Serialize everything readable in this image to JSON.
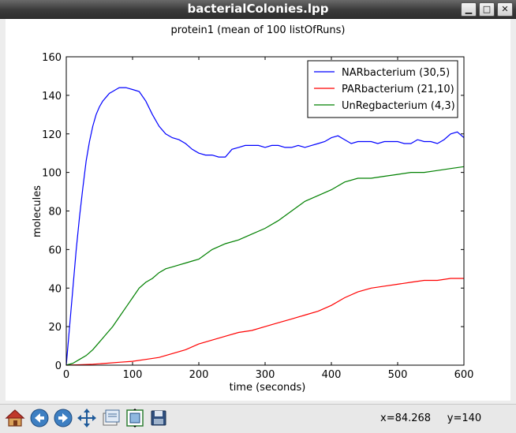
{
  "window": {
    "title": "bacterialColonies.lpp"
  },
  "window_controls": {
    "minimize": "▁",
    "maximize": "□",
    "close": "✕"
  },
  "toolbar": {
    "buttons": [
      {
        "icon": "home-icon"
      },
      {
        "icon": "back-icon"
      },
      {
        "icon": "forward-icon"
      },
      {
        "icon": "pan-icon"
      },
      {
        "icon": "zoom-icon"
      },
      {
        "icon": "subplots-icon"
      },
      {
        "icon": "save-icon"
      }
    ],
    "x_readout": "x=84.268",
    "y_readout": "y=140"
  },
  "chart_data": {
    "type": "line",
    "title": "protein1 (mean of 100 listOfRuns)",
    "xlabel": "time (seconds)",
    "ylabel": "molecules",
    "xlim": [
      0,
      600
    ],
    "ylim": [
      0,
      160
    ],
    "xticks": [
      0,
      100,
      200,
      300,
      400,
      500,
      600
    ],
    "yticks": [
      0,
      20,
      40,
      60,
      80,
      100,
      120,
      140,
      160
    ],
    "legend_position": "top-right",
    "grid": false,
    "series": [
      {
        "name": "NARbacterium (30,5)",
        "color": "#0000ff",
        "x": [
          0,
          5,
          10,
          15,
          20,
          25,
          30,
          35,
          40,
          45,
          50,
          55,
          60,
          65,
          70,
          75,
          80,
          85,
          90,
          95,
          100,
          110,
          120,
          130,
          140,
          150,
          160,
          170,
          180,
          190,
          200,
          210,
          220,
          230,
          240,
          250,
          260,
          270,
          280,
          290,
          300,
          310,
          320,
          330,
          340,
          350,
          360,
          370,
          380,
          390,
          400,
          410,
          420,
          430,
          440,
          450,
          460,
          470,
          480,
          490,
          500,
          510,
          520,
          530,
          540,
          550,
          560,
          570,
          580,
          590,
          600
        ],
        "y": [
          0,
          20,
          40,
          60,
          77,
          92,
          106,
          116,
          124,
          130,
          134,
          137,
          139,
          141,
          142,
          143,
          144,
          144,
          144,
          143.5,
          143,
          142,
          137,
          130,
          124,
          120,
          118,
          117,
          115,
          112,
          110,
          109,
          109,
          108,
          108,
          112,
          113,
          114,
          114,
          114,
          113,
          114,
          114,
          113,
          113,
          114,
          113,
          114,
          115,
          116,
          118,
          119,
          117,
          115,
          116,
          116,
          116,
          115,
          116,
          116,
          116,
          115,
          115,
          117,
          116,
          116,
          115,
          117,
          120,
          121,
          118
        ]
      },
      {
        "name": "PARbacterium (21,10)",
        "color": "#ff0000",
        "x": [
          0,
          20,
          40,
          60,
          80,
          100,
          120,
          140,
          160,
          180,
          200,
          220,
          240,
          260,
          280,
          300,
          320,
          340,
          360,
          380,
          400,
          420,
          440,
          460,
          480,
          500,
          520,
          540,
          560,
          580,
          600
        ],
        "y": [
          0,
          0.2,
          0.5,
          1,
          1.5,
          2,
          3,
          4,
          6,
          8,
          11,
          13,
          15,
          17,
          18,
          20,
          22,
          24,
          26,
          28,
          31,
          35,
          38,
          40,
          41,
          42,
          43,
          44,
          44,
          45,
          45
        ]
      },
      {
        "name": "UnRegbacterium (4,3)",
        "color": "#008000",
        "x": [
          0,
          10,
          20,
          30,
          40,
          50,
          60,
          70,
          80,
          90,
          100,
          110,
          120,
          130,
          140,
          150,
          160,
          170,
          180,
          190,
          200,
          220,
          240,
          260,
          280,
          300,
          320,
          340,
          360,
          380,
          400,
          420,
          440,
          460,
          480,
          500,
          520,
          540,
          560,
          580,
          600
        ],
        "y": [
          0,
          1,
          3,
          5,
          8,
          12,
          16,
          20,
          25,
          30,
          35,
          40,
          43,
          45,
          48,
          50,
          51,
          52,
          53,
          54,
          55,
          60,
          63,
          65,
          68,
          71,
          75,
          80,
          85,
          88,
          91,
          95,
          97,
          97,
          98,
          99,
          100,
          100,
          101,
          102,
          103
        ]
      }
    ]
  }
}
